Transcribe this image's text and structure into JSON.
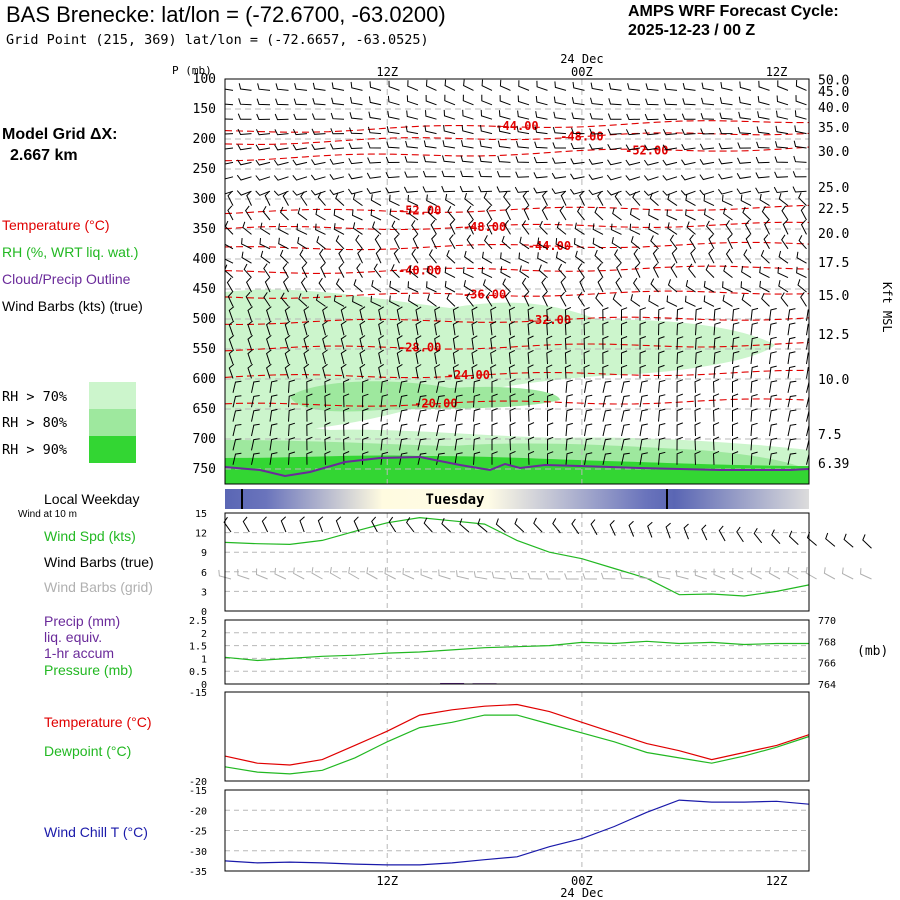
{
  "header": {
    "title": "BAS Brenecke:  lat/lon = (-72.6700, -63.0200)",
    "subtitle": "Grid Point (215, 369) lat/lon = (-72.6657, -63.0525)",
    "cycle_label": "AMPS WRF Forecast Cycle:",
    "cycle_value": "2025-12-23 / 00  Z",
    "grid_label": "Model Grid ΔX:",
    "grid_value": "2.667 km"
  },
  "colors": {
    "temperature": "#e00000",
    "rh": "#22b822",
    "cloud": "#6a2a9a",
    "wind_chill": "#1a1aaa",
    "rh70": "#ccf5cc",
    "rh80": "#9ee89e",
    "rh90": "#33d633",
    "grid": "#b8b8b8"
  },
  "legend": {
    "temperature": "Temperature (°C)",
    "rh": "RH (%, WRT liq. wat.)",
    "cloud": "Cloud/Precip Outline",
    "wind": "Wind Barbs (kts) (true)",
    "rh70": "RH > 70%",
    "rh80": "RH > 80%",
    "rh90": "RH > 90%"
  },
  "chart_data": [
    {
      "type": "time-height cross section",
      "name": "sounding",
      "ylabel": "P (mb)",
      "right_label": "Kft MSL",
      "pressure_ticks": [
        100,
        150,
        200,
        250,
        300,
        350,
        400,
        450,
        500,
        550,
        600,
        650,
        700,
        750
      ],
      "pressure_range": [
        100,
        775
      ],
      "height_ticks": [
        "50.0",
        "45.0",
        "40.0",
        "35.0",
        "30.0",
        "25.0",
        "22.5",
        "20.0",
        "17.5",
        "15.0",
        "12.5",
        "10.0",
        "7.5",
        "6.39"
      ],
      "height_tick_pressure": [
        101,
        120,
        147,
        180,
        220,
        280,
        315,
        357,
        405,
        460,
        525,
        600,
        692,
        740
      ],
      "time_ticks": [
        "12Z",
        "00Z",
        "12Z"
      ],
      "time_tick_hours": [
        12,
        24,
        36
      ],
      "date_label": "24 Dec",
      "time_range_hours": [
        2,
        38
      ],
      "temperature_contours": [
        {
          "label": "-44.00",
          "pressure": 188,
          "label_hour": 20
        },
        {
          "label": "-48.00",
          "pressure": 207,
          "label_hour": 24
        },
        {
          "label": "-52.00",
          "pressure": 233,
          "label_hour": 28
        },
        {
          "label": "-52.00",
          "pressure": 322,
          "label_hour": 14
        },
        {
          "label": "-48.00",
          "pressure": 350,
          "label_hour": 18
        },
        {
          "label": "-44.00",
          "pressure": 383,
          "label_hour": 22
        },
        {
          "label": "-40.00",
          "pressure": 422,
          "label_hour": 14
        },
        {
          "label": "-36.00",
          "pressure": 463,
          "label_hour": 18
        },
        {
          "label": "-32.00",
          "pressure": 506,
          "label_hour": 22
        },
        {
          "label": "-28.00",
          "pressure": 550,
          "label_hour": 14
        },
        {
          "label": "-24.00",
          "pressure": 597,
          "label_hour": 17
        },
        {
          "label": "-20.00",
          "pressure": 644,
          "label_hour": 15
        }
      ]
    },
    {
      "type": "line",
      "name": "wind speed",
      "ylim": [
        0,
        15
      ],
      "yticks": [
        0,
        3,
        6,
        9,
        12,
        15
      ],
      "hours": [
        2,
        4,
        6,
        8,
        10,
        12,
        14,
        16,
        18,
        20,
        22,
        24,
        26,
        28,
        30,
        32,
        34,
        36,
        38
      ],
      "series": [
        {
          "name": "Wind Spd (kts)",
          "values": [
            10.5,
            10.3,
            10.2,
            10.8,
            12.2,
            13.5,
            14.3,
            13.8,
            13.3,
            10.8,
            9.0,
            8.0,
            6.5,
            5.0,
            2.5,
            2.6,
            2.3,
            3.0,
            4.0
          ]
        }
      ]
    },
    {
      "type": "line",
      "name": "precip and pressure",
      "ylim": [
        0,
        2.5
      ],
      "yticks": [
        0,
        0.5,
        1,
        1.5,
        2,
        2.5
      ],
      "ylim_right": [
        764,
        770
      ],
      "yticks_right": [
        764,
        766,
        768,
        770
      ],
      "right_label": "(mb)",
      "hours": [
        2,
        4,
        6,
        8,
        10,
        12,
        14,
        16,
        18,
        20,
        22,
        24,
        26,
        28,
        30,
        32,
        34,
        36,
        38
      ],
      "series": [
        {
          "name": "Precip (mm)",
          "values": [
            0,
            0,
            0,
            0,
            0,
            0,
            0.02,
            0.04,
            0.03,
            0.01,
            0,
            0,
            0,
            0,
            0,
            0,
            0,
            0,
            0
          ]
        },
        {
          "name": "Pressure (mb)",
          "values": [
            766.5,
            766.2,
            766.4,
            766.6,
            766.7,
            766.9,
            767.0,
            767.2,
            767.4,
            767.5,
            767.6,
            767.9,
            767.8,
            768.0,
            767.8,
            767.9,
            767.7,
            767.8,
            767.8
          ]
        }
      ]
    },
    {
      "type": "line",
      "name": "temperature and dewpoint",
      "ylim": [
        -20,
        -15
      ],
      "yticks": [
        -20,
        -15
      ],
      "hours": [
        2,
        4,
        6,
        8,
        10,
        12,
        14,
        16,
        18,
        20,
        22,
        24,
        26,
        28,
        30,
        32,
        34,
        36,
        38
      ],
      "series": [
        {
          "name": "Temperature (°C)",
          "values": [
            -18.6,
            -19.0,
            -19.1,
            -18.8,
            -18.0,
            -17.2,
            -16.3,
            -16.0,
            -15.8,
            -15.7,
            -16.1,
            -16.7,
            -17.3,
            -17.9,
            -18.3,
            -18.8,
            -18.4,
            -18.0,
            -17.4
          ]
        },
        {
          "name": "Dewpoint (°C)",
          "values": [
            -19.2,
            -19.5,
            -19.6,
            -19.4,
            -18.7,
            -17.8,
            -17.0,
            -16.7,
            -16.3,
            -16.3,
            -16.8,
            -17.3,
            -17.8,
            -18.4,
            -18.7,
            -19.0,
            -18.6,
            -18.1,
            -17.5
          ]
        }
      ]
    },
    {
      "type": "line",
      "name": "wind chill",
      "ylim": [
        -35,
        -15
      ],
      "yticks": [
        -35,
        -30,
        -25,
        -20,
        -15
      ],
      "hours": [
        2,
        4,
        6,
        8,
        10,
        12,
        14,
        16,
        18,
        20,
        22,
        24,
        26,
        28,
        30,
        32,
        34,
        36,
        38
      ],
      "series": [
        {
          "name": "Wind Chill T (°C)",
          "values": [
            -32.5,
            -33.0,
            -32.8,
            -33.0,
            -33.3,
            -33.5,
            -33.5,
            -33.0,
            -32.2,
            -31.5,
            -29.0,
            -27.0,
            -24.0,
            -20.5,
            -17.5,
            -18.0,
            -18.0,
            -17.8,
            -18.5
          ]
        }
      ]
    }
  ],
  "weekday": {
    "label": "Local Weekday",
    "wind_note": "Wind at 10 m",
    "day": "Tuesday"
  },
  "panels": {
    "wind_spd_label": "Wind Spd (kts)",
    "wind_true_label": "Wind Barbs (true)",
    "wind_grid_label": "Wind Barbs (grid)",
    "precip_label": "Precip (mm)",
    "precip_sub1": "liq. equiv.",
    "precip_sub2": "1-hr accum",
    "pressure_label": "Pressure (mb)",
    "temp_label": "Temperature (°C)",
    "dew_label": "Dewpoint (°C)",
    "chill_label": "Wind Chill T (°C)"
  }
}
